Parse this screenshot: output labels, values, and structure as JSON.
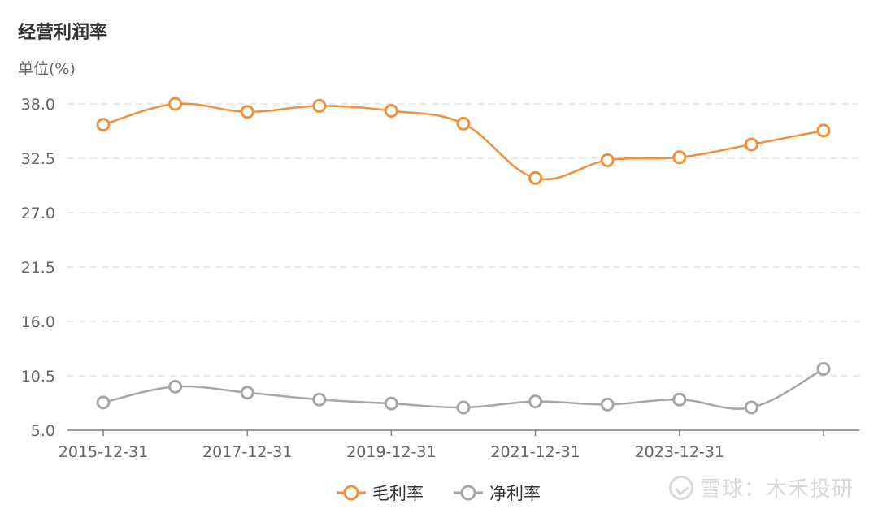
{
  "title": "经营利润率",
  "unit_label": "单位(%)",
  "watermark": "雪球：木禾投研",
  "colors": {
    "gross": "#f0903a",
    "net": "#a6a6a6",
    "grid": "#e3e3e3",
    "axis": "#7f7f7f",
    "tick_text": "#666666"
  },
  "chart_data": {
    "type": "line",
    "x": [
      "2015-12-31",
      "2016-12-31",
      "2017-12-31",
      "2018-12-31",
      "2019-12-31",
      "2020-12-31",
      "2021-12-31",
      "2022-12-31",
      "2023-12-31",
      "2024-12-31",
      "2025-12-31"
    ],
    "x_tick_labels": [
      "2015-12-31",
      "2017-12-31",
      "2019-12-31",
      "2021-12-31",
      "2023-12-31"
    ],
    "y_ticks": [
      "5.0",
      "10.5",
      "16.0",
      "21.5",
      "27.0",
      "32.5",
      "38.0"
    ],
    "ylim": [
      5.0,
      38.0
    ],
    "grid": true,
    "legend_position": "bottom",
    "series": [
      {
        "name": "毛利率",
        "color": "#f0903a",
        "values": [
          35.9,
          38.0,
          37.2,
          37.8,
          37.3,
          36.0,
          30.5,
          32.3,
          32.6,
          33.9,
          35.3
        ]
      },
      {
        "name": "净利率",
        "color": "#a6a6a6",
        "values": [
          7.8,
          9.4,
          8.8,
          8.1,
          7.7,
          7.3,
          7.9,
          7.6,
          8.1,
          7.3,
          11.2
        ]
      }
    ]
  }
}
